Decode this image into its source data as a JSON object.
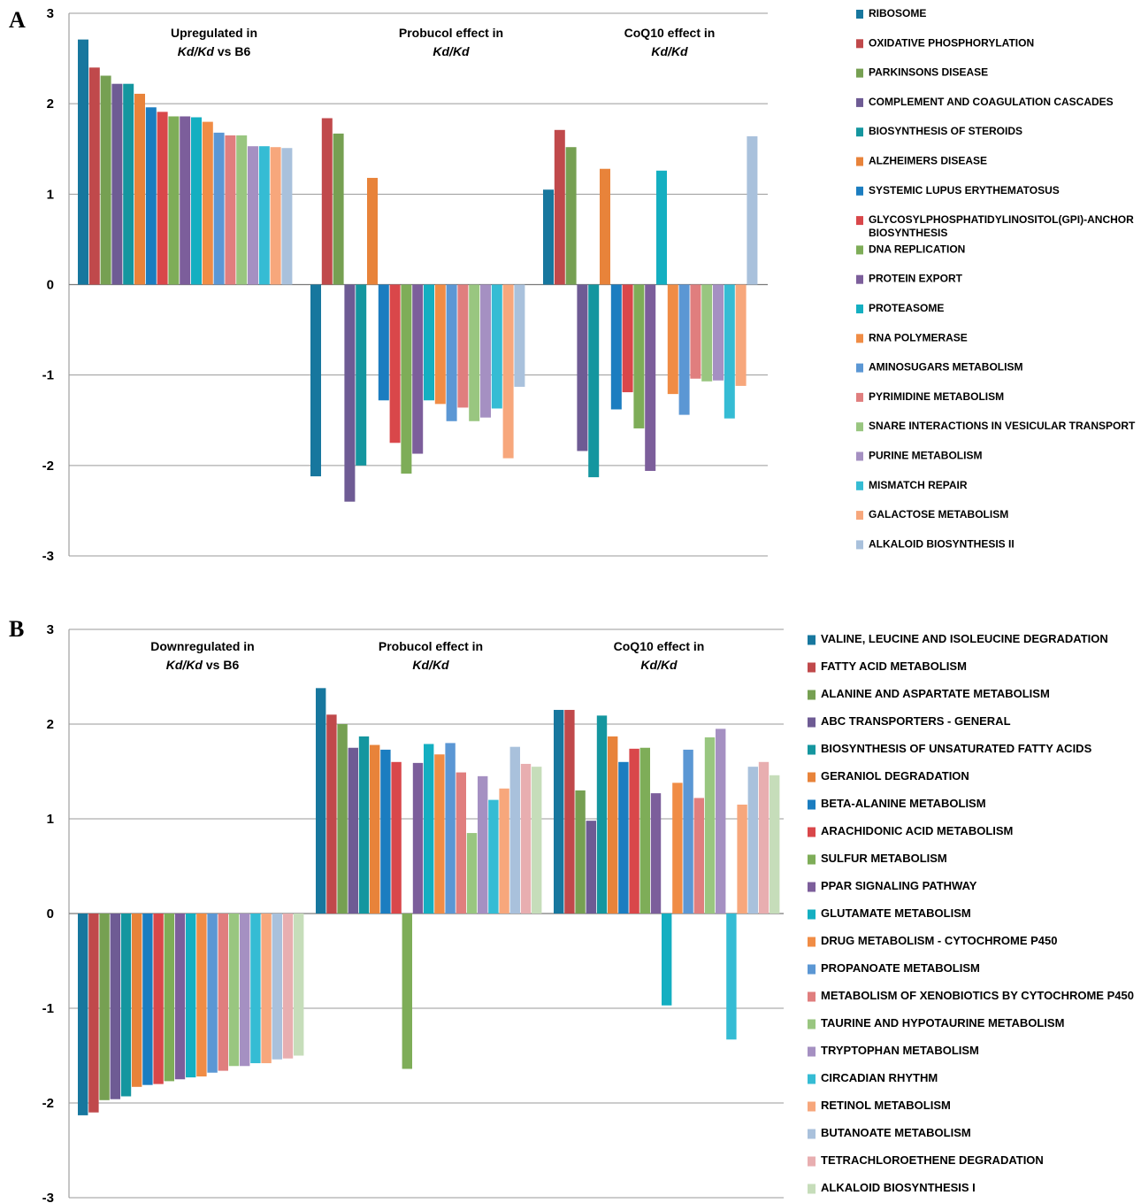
{
  "panels": [
    {
      "letter": "A",
      "chart_data": {
        "type": "bar",
        "ylim": [
          -3,
          3
        ],
        "yticks": [
          3,
          2,
          1,
          0,
          -1,
          -2,
          -3
        ],
        "groups": [
          {
            "line1": "Upregulated in",
            "line2_italic": "Kd/Kd",
            "line2_rest": " vs B6"
          },
          {
            "line1": "Probucol effect in",
            "line2_italic": "Kd/Kd",
            "line2_rest": ""
          },
          {
            "line1": "CoQ10 effect in",
            "line2_italic": "Kd/Kd",
            "line2_rest": ""
          }
        ],
        "series": [
          {
            "name": "RIBOSOME",
            "color": "#17779E",
            "values": [
              2.71,
              -2.12,
              1.05
            ]
          },
          {
            "name": "OXIDATIVE PHOSPHORYLATION",
            "color": "#C0494B",
            "values": [
              2.4,
              1.84,
              1.71
            ]
          },
          {
            "name": "PARKINSONS DISEASE",
            "color": "#76A052",
            "values": [
              2.31,
              1.67,
              1.52
            ]
          },
          {
            "name": "COMPLEMENT AND COAGULATION CASCADES",
            "color": "#6E5B94",
            "values": [
              2.22,
              -2.4,
              -1.84
            ]
          },
          {
            "name": "BIOSYNTHESIS OF STEROIDS",
            "color": "#14969F",
            "values": [
              2.22,
              -2.0,
              -2.13
            ]
          },
          {
            "name": "ALZHEIMERS DISEASE",
            "color": "#E8833A",
            "values": [
              2.11,
              1.18,
              1.28
            ]
          },
          {
            "name": "SYSTEMIC LUPUS ERYTHEMATOSUS",
            "color": "#1B7DC0",
            "values": [
              1.96,
              -1.28,
              -1.38
            ]
          },
          {
            "name": "GLYCOSYLPHOSPHATIDYLINOSITOL(GPI)-ANCHOR BIOSYNTHESIS",
            "color": "#D9474A",
            "values": [
              1.91,
              -1.75,
              -1.19
            ]
          },
          {
            "name": "DNA REPLICATION",
            "color": "#7EAD58",
            "values": [
              1.86,
              -2.09,
              -1.59
            ]
          },
          {
            "name": "PROTEIN EXPORT",
            "color": "#7C5E9B",
            "values": [
              1.86,
              -1.87,
              -2.06
            ]
          },
          {
            "name": "PROTEASOME",
            "color": "#14AFC1",
            "values": [
              1.85,
              -1.28,
              1.26
            ]
          },
          {
            "name": "RNA POLYMERASE",
            "color": "#F08C45",
            "values": [
              1.8,
              -1.32,
              -1.21
            ]
          },
          {
            "name": "AMINOSUGARS METABOLISM",
            "color": "#5B97D4",
            "values": [
              1.68,
              -1.51,
              -1.44
            ]
          },
          {
            "name": "PYRIMIDINE METABOLISM",
            "color": "#E07E7E",
            "values": [
              1.65,
              -1.36,
              -1.04
            ]
          },
          {
            "name": "SNARE INTERACTIONS IN VESICULAR TRANSPORT",
            "color": "#99C680",
            "values": [
              1.65,
              -1.51,
              -1.07
            ]
          },
          {
            "name": "PURINE METABOLISM",
            "color": "#A590C2",
            "values": [
              1.53,
              -1.47,
              -1.06
            ]
          },
          {
            "name": "MISMATCH REPAIR",
            "color": "#35BCD4",
            "values": [
              1.53,
              -1.37,
              -1.48
            ]
          },
          {
            "name": "GALACTOSE METABOLISM",
            "color": "#F7A77C",
            "values": [
              1.52,
              -1.92,
              -1.12
            ]
          },
          {
            "name": "ALKALOID BIOSYNTHESIS II",
            "color": "#A9C1DC",
            "values": [
              1.51,
              -1.13,
              1.64
            ]
          }
        ]
      }
    },
    {
      "letter": "B",
      "chart_data": {
        "type": "bar",
        "ylim": [
          -3,
          3
        ],
        "yticks": [
          3,
          2,
          1,
          0,
          -1,
          -2,
          -3
        ],
        "groups": [
          {
            "line1": "Downregulated in",
            "line2_italic": "Kd/Kd",
            "line2_rest": " vs B6"
          },
          {
            "line1": "Probucol effect in",
            "line2_italic": "Kd/Kd",
            "line2_rest": ""
          },
          {
            "line1": "CoQ10 effect in",
            "line2_italic": "Kd/Kd",
            "line2_rest": ""
          }
        ],
        "series": [
          {
            "name": "VALINE, LEUCINE AND ISOLEUCINE DEGRADATION",
            "color": "#17779E",
            "values": [
              -2.13,
              2.38,
              2.15
            ]
          },
          {
            "name": "FATTY ACID METABOLISM",
            "color": "#C0494B",
            "values": [
              -2.1,
              2.1,
              2.15
            ]
          },
          {
            "name": "ALANINE AND ASPARTATE  METABOLISM",
            "color": "#76A052",
            "values": [
              -1.97,
              2.0,
              1.3
            ]
          },
          {
            "name": "ABC TRANSPORTERS -  GENERAL",
            "color": "#6E5B94",
            "values": [
              -1.96,
              1.75,
              0.98
            ]
          },
          {
            "name": "BIOSYNTHESIS OF UNSATURATED FATTY ACIDS",
            "color": "#14969F",
            "values": [
              -1.93,
              1.87,
              2.09
            ]
          },
          {
            "name": "GERANIOL DEGRADATION",
            "color": "#E8833A",
            "values": [
              -1.83,
              1.78,
              1.87
            ]
          },
          {
            "name": "BETA-ALANINE METABOLISM",
            "color": "#1B7DC0",
            "values": [
              -1.81,
              1.73,
              1.6
            ]
          },
          {
            "name": "ARACHIDONIC ACID METABOLISM",
            "color": "#D9474A",
            "values": [
              -1.8,
              1.6,
              1.74
            ]
          },
          {
            "name": "SULFUR METABOLISM",
            "color": "#7EAD58",
            "values": [
              -1.77,
              -1.64,
              1.75
            ]
          },
          {
            "name": "PPAR SIGNALING PATHWAY",
            "color": "#7C5E9B",
            "values": [
              -1.75,
              1.59,
              1.27
            ]
          },
          {
            "name": "GLUTAMATE METABOLISM",
            "color": "#14AFC1",
            "values": [
              -1.73,
              1.79,
              -0.97
            ]
          },
          {
            "name": "DRUG METABOLISM  - CYTOCHROME P450",
            "color": "#F08C45",
            "values": [
              -1.72,
              1.68,
              1.38
            ]
          },
          {
            "name": "PROPANOATE METABOLISM",
            "color": "#5B97D4",
            "values": [
              -1.68,
              1.8,
              1.73
            ]
          },
          {
            "name": "METABOLISM OF XENOBIOTICS BY CYTOCHROME   P450",
            "color": "#E07E7E",
            "values": [
              -1.66,
              1.49,
              1.22
            ]
          },
          {
            "name": "TAURINE AND HYPOTAURINE METABOLISM",
            "color": "#99C680",
            "values": [
              -1.61,
              0.85,
              1.86
            ]
          },
          {
            "name": "TRYPTOPHAN METABOLISM",
            "color": "#A590C2",
            "values": [
              -1.61,
              1.45,
              1.95
            ]
          },
          {
            "name": "CIRCADIAN RHYTHM",
            "color": "#35BCD4",
            "values": [
              -1.58,
              1.2,
              -1.33
            ]
          },
          {
            "name": "RETINOL METABOLISM",
            "color": "#F7A77C",
            "values": [
              -1.58,
              1.32,
              1.15
            ]
          },
          {
            "name": "BUTANOATE METABOLISM",
            "color": "#A9C1DC",
            "values": [
              -1.54,
              1.76,
              1.55
            ]
          },
          {
            "name": "TETRACHLOROETHENE DEGRADATION",
            "color": "#E8AEB0",
            "values": [
              -1.53,
              1.58,
              1.6
            ]
          },
          {
            "name": "ALKALOID BIOSYNTHESIS I",
            "color": "#C6DDBA",
            "values": [
              -1.5,
              1.55,
              1.46
            ]
          }
        ]
      }
    }
  ]
}
